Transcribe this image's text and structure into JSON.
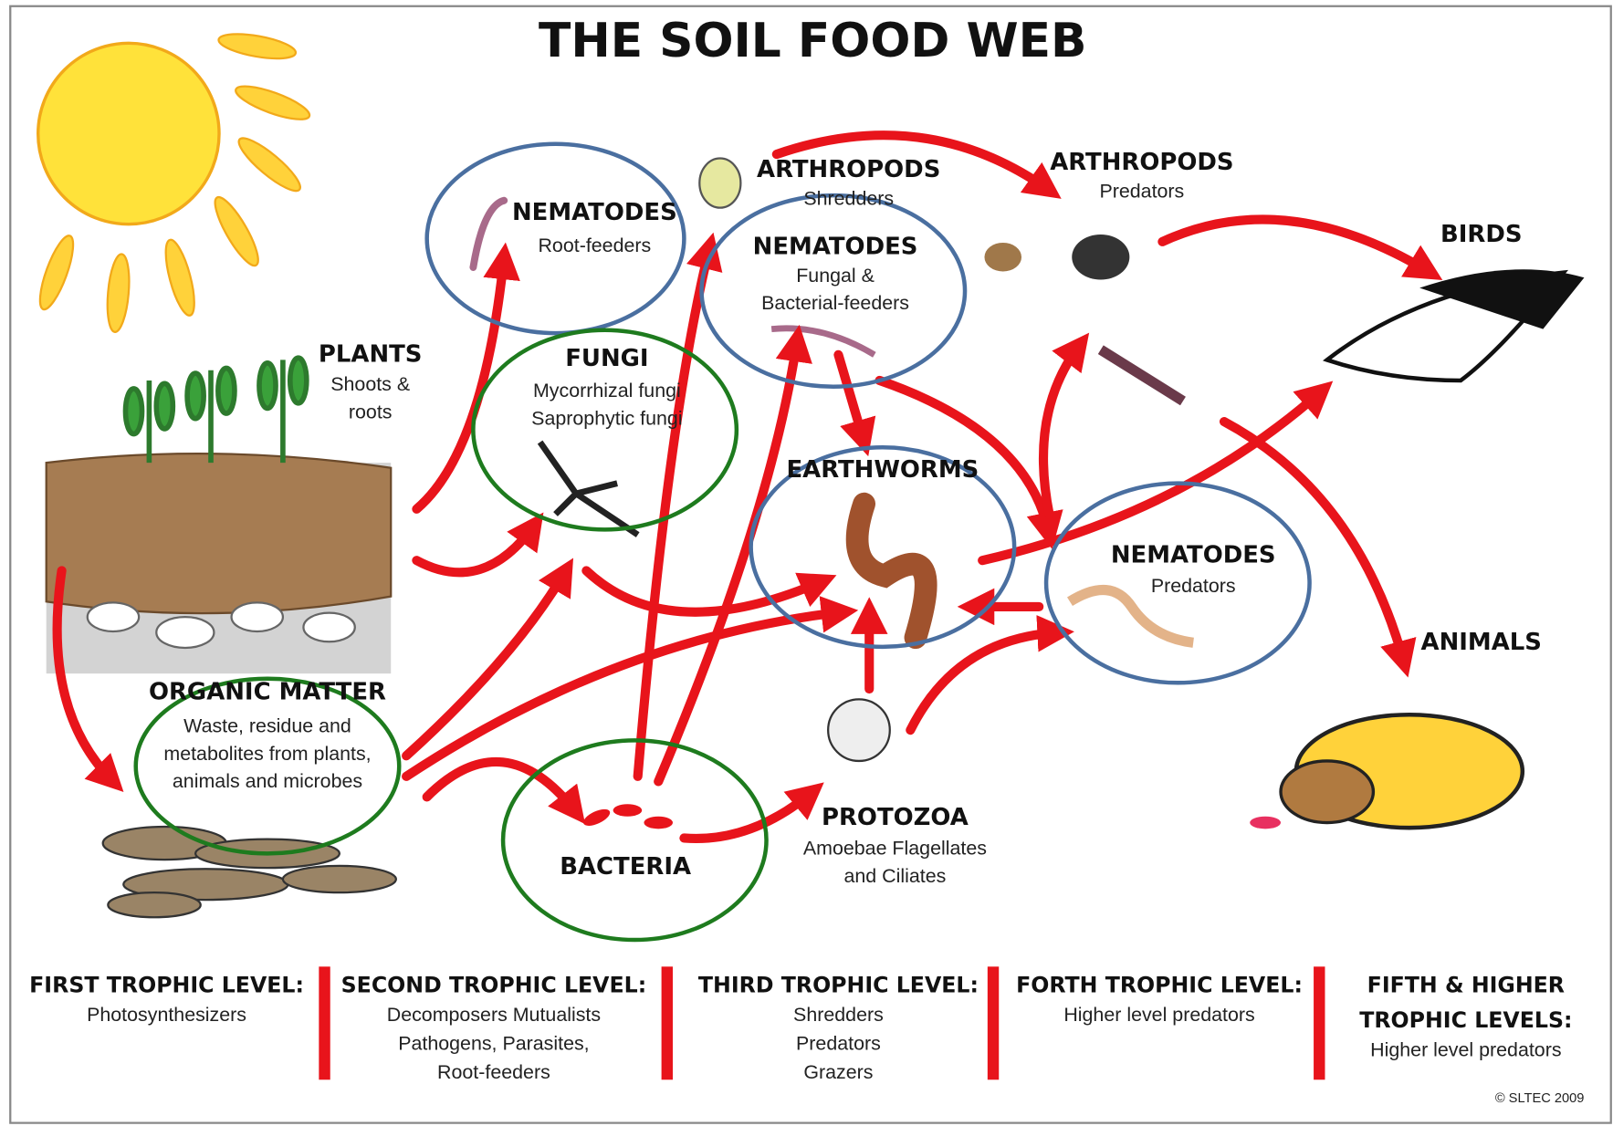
{
  "title": "THE SOIL FOOD WEB",
  "nodes": [
    {
      "label": "PLANTS",
      "lines": [
        "Shoots &",
        "roots"
      ]
    },
    {
      "label": "ORGANIC MATTER",
      "lines": [
        "Waste, residue and",
        "metabolites from plants,",
        "animals and microbes"
      ]
    },
    {
      "label": "NEMATODES",
      "lines": [
        "Root-feeders"
      ]
    },
    {
      "label": "FUNGI",
      "lines": [
        "Mycorrhizal fungi",
        "Saprophytic fungi"
      ]
    },
    {
      "label": "BACTERIA",
      "lines": []
    },
    {
      "label": "ARTHROPODS",
      "lines": [
        "Shredders"
      ]
    },
    {
      "label": "NEMATODES",
      "lines": [
        "Fungal &",
        "Bacterial-feeders"
      ]
    },
    {
      "label": "EARTHWORMS",
      "lines": []
    },
    {
      "label": "PROTOZOA",
      "lines": [
        "Amoebae Flagellates",
        "and Ciliates"
      ]
    },
    {
      "label": "ARTHROPODS",
      "lines": [
        "Predators"
      ]
    },
    {
      "label": "NEMATODES",
      "lines": [
        "Predators"
      ]
    },
    {
      "label": "BIRDS",
      "lines": []
    },
    {
      "label": "ANIMALS",
      "lines": []
    }
  ],
  "trophic_levels": [
    {
      "title": [
        "FIRST TROPHIC LEVEL:"
      ],
      "lines": [
        "Photosynthesizers"
      ]
    },
    {
      "title": [
        "SECOND TROPHIC LEVEL:"
      ],
      "lines": [
        "Decomposers Mutualists",
        "Pathogens, Parasites,",
        "Root-feeders"
      ]
    },
    {
      "title": [
        "THIRD TROPHIC LEVEL:"
      ],
      "lines": [
        "Shredders",
        "Predators",
        "Grazers"
      ]
    },
    {
      "title": [
        "FORTH TROPHIC LEVEL:"
      ],
      "lines": [
        "Higher level predators"
      ]
    },
    {
      "title": [
        "FIFTH & HIGHER",
        "TROPHIC LEVELS:"
      ],
      "lines": [
        "Higher level predators"
      ]
    }
  ],
  "copyright": "© SLTEC 2009"
}
